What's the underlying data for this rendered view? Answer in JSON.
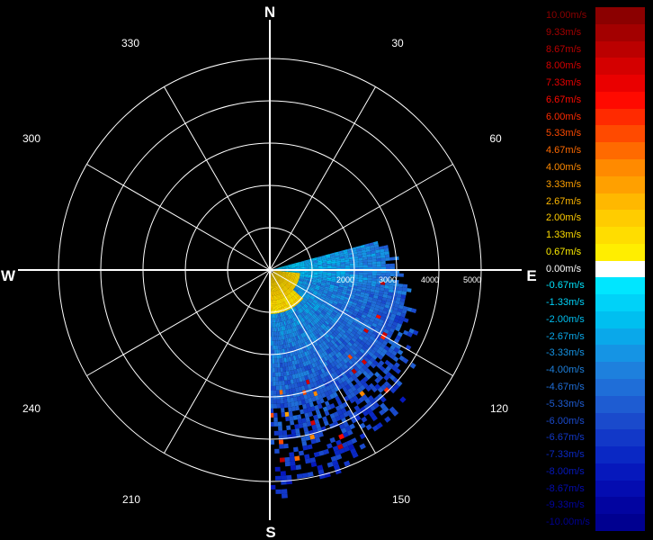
{
  "chart_data": {
    "type": "heatmap",
    "subtype": "polar radar radial velocity (PPI)",
    "compass_labels": {
      "north": "N",
      "east": "E",
      "south": "S",
      "west": "W"
    },
    "azimuth_labels": [
      "30",
      "60",
      "120",
      "150",
      "210",
      "240",
      "300",
      "330"
    ],
    "range_labels": [
      "2000",
      "3000",
      "4000",
      "5000"
    ],
    "range_rings": 5,
    "grid": true,
    "legend_placement": "right",
    "data_sector_deg": [
      75,
      180
    ],
    "colors": {
      "background": "#000000",
      "grid": "#ffffff"
    },
    "dominant_values": [
      {
        "sector": "near east (0-1500)",
        "velocity": "1.33m/s"
      },
      {
        "sector": "east-southeast",
        "velocity": "-2.67m/s"
      },
      {
        "sector": "south-southeast",
        "velocity": "-4.00m/s"
      },
      {
        "sector": "far range",
        "velocity": "-6.00m/s"
      }
    ],
    "legend": [
      {
        "label": "10.00m/s",
        "color": "#8b0000"
      },
      {
        "label": "9.33m/s",
        "color": "#a30000"
      },
      {
        "label": "8.67m/s",
        "color": "#bb0000"
      },
      {
        "label": "8.00m/s",
        "color": "#d40000"
      },
      {
        "label": "7.33m/s",
        "color": "#ea0000"
      },
      {
        "label": "6.67m/s",
        "color": "#ff0a00"
      },
      {
        "label": "6.00m/s",
        "color": "#ff2a00"
      },
      {
        "label": "5.33m/s",
        "color": "#ff4a00"
      },
      {
        "label": "4.67m/s",
        "color": "#ff6a00"
      },
      {
        "label": "4.00m/s",
        "color": "#ff8a00"
      },
      {
        "label": "3.33m/s",
        "color": "#ffa000"
      },
      {
        "label": "2.67m/s",
        "color": "#ffb800"
      },
      {
        "label": "2.00m/s",
        "color": "#ffcc00"
      },
      {
        "label": "1.33m/s",
        "color": "#ffdd00"
      },
      {
        "label": "0.67m/s",
        "color": "#ffee00"
      },
      {
        "label": "0.00m/s",
        "color": "#ffffff"
      },
      {
        "label": "-0.67m/s",
        "color": "#00e6ff"
      },
      {
        "label": "-1.33m/s",
        "color": "#00d2f8"
      },
      {
        "label": "-2.00m/s",
        "color": "#00bff0"
      },
      {
        "label": "-2.67m/s",
        "color": "#0aa8ea"
      },
      {
        "label": "-3.33m/s",
        "color": "#1594e4"
      },
      {
        "label": "-4.00m/s",
        "color": "#1e80dd"
      },
      {
        "label": "-4.67m/s",
        "color": "#1f6ed8"
      },
      {
        "label": "-5.33m/s",
        "color": "#1e5cd2"
      },
      {
        "label": "-6.00m/s",
        "color": "#1a4acc"
      },
      {
        "label": "-6.67m/s",
        "color": "#1238c8"
      },
      {
        "label": "-7.33m/s",
        "color": "#0a28c4"
      },
      {
        "label": "-8.00m/s",
        "color": "#0618bc"
      },
      {
        "label": "-8.67m/s",
        "color": "#040cb0"
      },
      {
        "label": "-9.33m/s",
        "color": "#0204a0"
      },
      {
        "label": "-10.00m/s",
        "color": "#000090"
      }
    ]
  }
}
